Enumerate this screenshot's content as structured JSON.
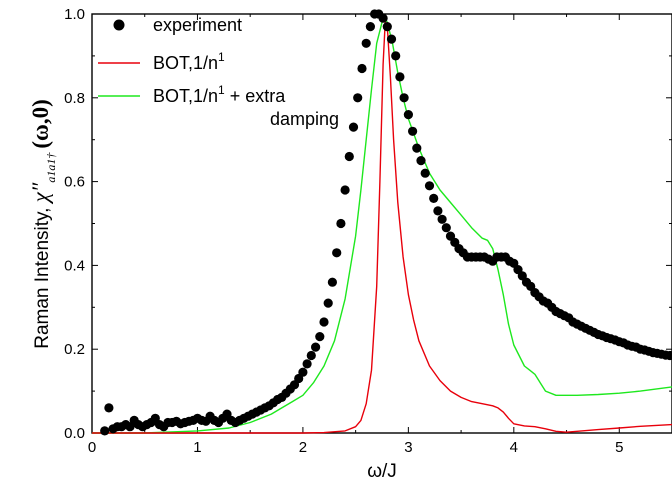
{
  "chart_data": {
    "type": "line",
    "xlabel": "ω/J",
    "ylabel": "Raman Intensity, χ″ (ω,0)",
    "ylabel_prefix": "Raman Intensity, ",
    "ylabel_chi": "χ″",
    "ylabel_sub": "a1a1†",
    "ylabel_arg": "(ω,0)",
    "xlim": [
      0,
      5.5
    ],
    "ylim": [
      0,
      1.0
    ],
    "x_ticks": [
      0,
      1,
      2,
      3,
      4,
      5
    ],
    "x_tick_labels": [
      "0",
      "1",
      "2",
      "3",
      "4",
      "5"
    ],
    "y_ticks": [
      0.0,
      0.2,
      0.4,
      0.6,
      0.8,
      1.0
    ],
    "y_tick_labels": [
      "0.0",
      "0.2",
      "0.4",
      "0.6",
      "0.8",
      "1.0"
    ],
    "grid": false,
    "legend_position": "top-left",
    "series": [
      {
        "name": "experiment",
        "kind": "scatter",
        "color": "#000000",
        "x": [
          0.12,
          0.16,
          0.2,
          0.24,
          0.28,
          0.32,
          0.36,
          0.4,
          0.44,
          0.48,
          0.52,
          0.56,
          0.6,
          0.64,
          0.68,
          0.72,
          0.76,
          0.8,
          0.84,
          0.88,
          0.92,
          0.96,
          1.0,
          1.04,
          1.08,
          1.12,
          1.16,
          1.2,
          1.24,
          1.28,
          1.32,
          1.36,
          1.4,
          1.44,
          1.48,
          1.52,
          1.56,
          1.6,
          1.64,
          1.68,
          1.72,
          1.76,
          1.8,
          1.84,
          1.88,
          1.92,
          1.96,
          2.0,
          2.04,
          2.08,
          2.12,
          2.16,
          2.2,
          2.24,
          2.28,
          2.32,
          2.36,
          2.4,
          2.44,
          2.48,
          2.52,
          2.56,
          2.6,
          2.64,
          2.68,
          2.72,
          2.76,
          2.8,
          2.84,
          2.88,
          2.92,
          2.96,
          3.0,
          3.04,
          3.08,
          3.12,
          3.16,
          3.2,
          3.24,
          3.28,
          3.32,
          3.36,
          3.4,
          3.44,
          3.48,
          3.52,
          3.56,
          3.6,
          3.64,
          3.68,
          3.72,
          3.76,
          3.8,
          3.84,
          3.88,
          3.92,
          3.96,
          4.0,
          4.04,
          4.08,
          4.12,
          4.16,
          4.2,
          4.24,
          4.28,
          4.32,
          4.36,
          4.4,
          4.44,
          4.48,
          4.52,
          4.56,
          4.6,
          4.64,
          4.68,
          4.72,
          4.76,
          4.8,
          4.84,
          4.88,
          4.92,
          4.96,
          5.0,
          5.04,
          5.08,
          5.12,
          5.16,
          5.2,
          5.24,
          5.28,
          5.32,
          5.36,
          5.4,
          5.44,
          5.48
        ],
        "y": [
          0.005,
          0.06,
          0.01,
          0.015,
          0.015,
          0.02,
          0.015,
          0.03,
          0.02,
          0.015,
          0.02,
          0.025,
          0.035,
          0.02,
          0.015,
          0.025,
          0.025,
          0.028,
          0.022,
          0.025,
          0.028,
          0.03,
          0.035,
          0.03,
          0.028,
          0.04,
          0.03,
          0.025,
          0.035,
          0.045,
          0.03,
          0.025,
          0.03,
          0.035,
          0.04,
          0.045,
          0.05,
          0.055,
          0.06,
          0.065,
          0.072,
          0.08,
          0.085,
          0.095,
          0.105,
          0.115,
          0.13,
          0.145,
          0.165,
          0.185,
          0.205,
          0.23,
          0.265,
          0.31,
          0.36,
          0.43,
          0.5,
          0.58,
          0.66,
          0.73,
          0.8,
          0.87,
          0.93,
          0.97,
          1.0,
          1.0,
          0.99,
          0.97,
          0.94,
          0.9,
          0.85,
          0.8,
          0.76,
          0.72,
          0.68,
          0.65,
          0.62,
          0.59,
          0.56,
          0.53,
          0.51,
          0.49,
          0.47,
          0.455,
          0.44,
          0.43,
          0.42,
          0.42,
          0.42,
          0.42,
          0.42,
          0.415,
          0.41,
          0.42,
          0.42,
          0.42,
          0.41,
          0.405,
          0.39,
          0.375,
          0.36,
          0.35,
          0.335,
          0.325,
          0.315,
          0.31,
          0.3,
          0.29,
          0.285,
          0.28,
          0.275,
          0.265,
          0.26,
          0.255,
          0.25,
          0.245,
          0.24,
          0.235,
          0.232,
          0.228,
          0.225,
          0.222,
          0.218,
          0.215,
          0.21,
          0.207,
          0.205,
          0.2,
          0.198,
          0.195,
          0.192,
          0.19,
          0.188,
          0.186,
          0.185
        ]
      },
      {
        "name": "BOT,1/n",
        "name_sup": "1",
        "kind": "line",
        "color": "#e8000b",
        "x": [
          0,
          0.5,
          1.0,
          1.5,
          2.0,
          2.2,
          2.4,
          2.5,
          2.55,
          2.6,
          2.65,
          2.7,
          2.73,
          2.76,
          2.78,
          2.8,
          2.83,
          2.86,
          2.9,
          2.95,
          3.0,
          3.05,
          3.1,
          3.2,
          3.3,
          3.4,
          3.5,
          3.6,
          3.7,
          3.8,
          3.85,
          3.9,
          3.95,
          4.0,
          4.1,
          4.2,
          4.3,
          4.4,
          4.5,
          4.6,
          4.8,
          5.0,
          5.2,
          5.5
        ],
        "y": [
          0,
          0,
          0,
          0,
          0,
          0.001,
          0.005,
          0.015,
          0.03,
          0.07,
          0.15,
          0.35,
          0.6,
          0.88,
          0.98,
          0.97,
          0.85,
          0.7,
          0.55,
          0.42,
          0.33,
          0.27,
          0.22,
          0.16,
          0.125,
          0.1,
          0.085,
          0.075,
          0.07,
          0.065,
          0.06,
          0.05,
          0.035,
          0.022,
          0.017,
          0.015,
          0.01,
          0.004,
          0.002,
          0.004,
          0.008,
          0.012,
          0.016,
          0.02
        ]
      },
      {
        "name": "BOT,1/n",
        "name_sup": "1",
        "name_suffix": " + extra",
        "name_line2": "damping",
        "kind": "line",
        "color": "#1ee81e",
        "x": [
          0,
          0.5,
          1.0,
          1.3,
          1.5,
          1.7,
          1.8,
          1.9,
          2.0,
          2.1,
          2.2,
          2.3,
          2.4,
          2.5,
          2.55,
          2.6,
          2.65,
          2.7,
          2.75,
          2.78,
          2.8,
          2.85,
          2.9,
          2.95,
          3.0,
          3.1,
          3.2,
          3.3,
          3.4,
          3.5,
          3.6,
          3.7,
          3.75,
          3.8,
          3.85,
          3.9,
          3.95,
          4.0,
          4.1,
          4.15,
          4.2,
          4.25,
          4.3,
          4.4,
          4.6,
          4.8,
          5.0,
          5.2,
          5.5
        ],
        "y": [
          0,
          0,
          0.005,
          0.012,
          0.025,
          0.045,
          0.06,
          0.075,
          0.09,
          0.12,
          0.16,
          0.22,
          0.32,
          0.47,
          0.58,
          0.7,
          0.82,
          0.93,
          0.98,
          0.99,
          0.98,
          0.93,
          0.86,
          0.8,
          0.75,
          0.68,
          0.62,
          0.58,
          0.55,
          0.52,
          0.49,
          0.465,
          0.46,
          0.44,
          0.39,
          0.33,
          0.26,
          0.21,
          0.16,
          0.15,
          0.14,
          0.12,
          0.1,
          0.09,
          0.09,
          0.092,
          0.095,
          0.1,
          0.11
        ]
      }
    ]
  }
}
